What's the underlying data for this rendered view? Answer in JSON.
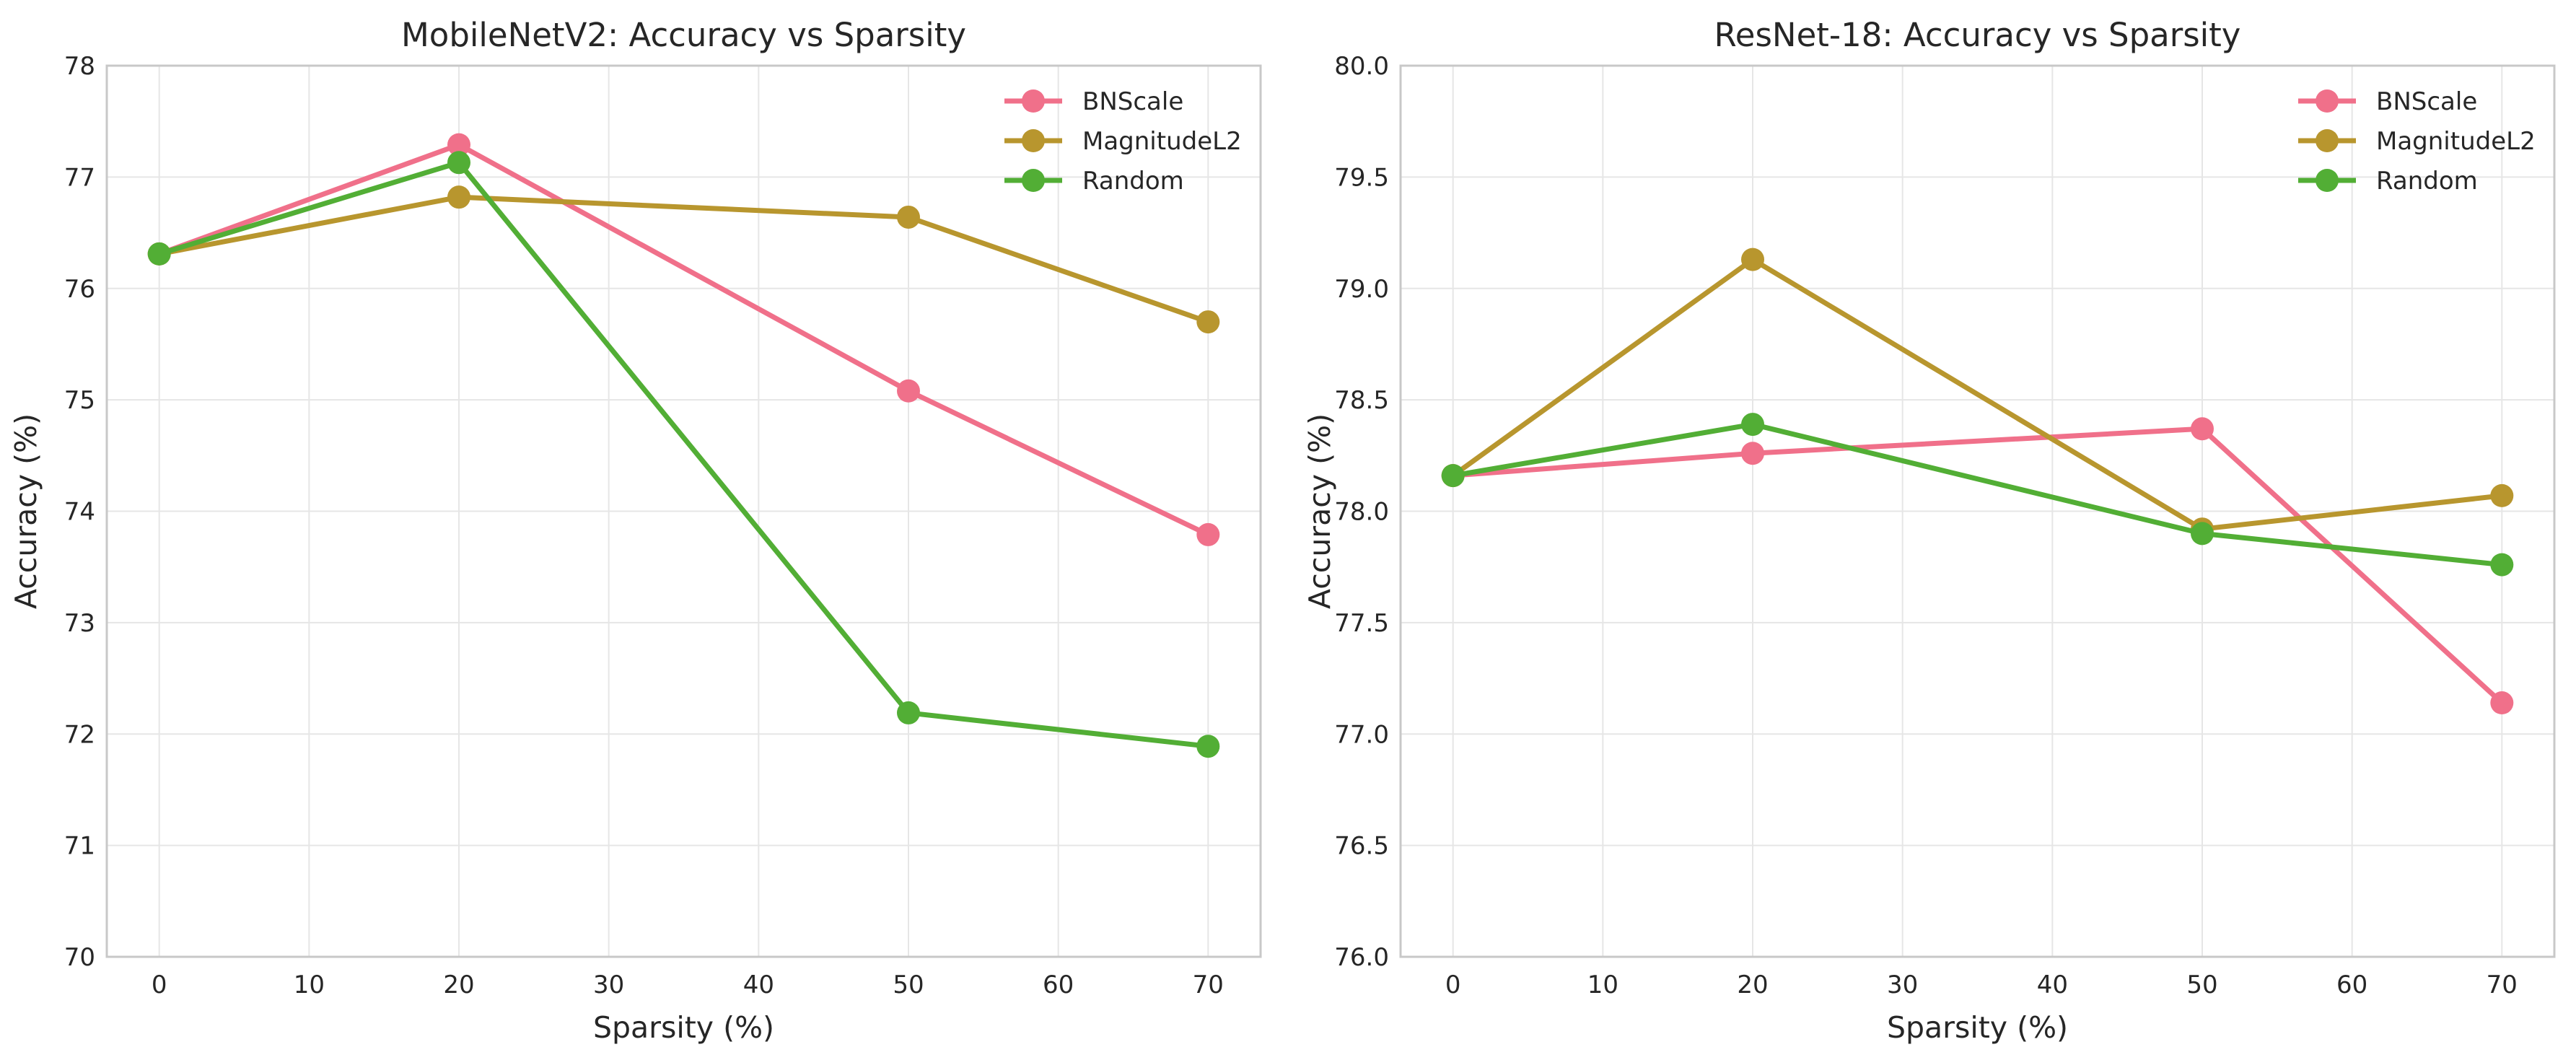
{
  "chart_data": [
    {
      "type": "line",
      "title": "MobileNetV2: Accuracy vs Sparsity",
      "xlabel": "Sparsity (%)",
      "ylabel": "Accuracy (%)",
      "x": [
        0,
        20,
        50,
        70
      ],
      "xlim": [
        -3.5,
        73.5
      ],
      "ylim": [
        70,
        78
      ],
      "xticks": [
        0,
        10,
        20,
        30,
        40,
        50,
        60,
        70
      ],
      "yticks": [
        70,
        71,
        72,
        73,
        74,
        75,
        76,
        77,
        78
      ],
      "ytick_labels": [
        "70",
        "71",
        "72",
        "73",
        "74",
        "75",
        "76",
        "77",
        "78"
      ],
      "grid": true,
      "legend_position": "top-right",
      "series": [
        {
          "name": "BNScale",
          "color": "#f0708a",
          "values": [
            76.31,
            77.29,
            75.08,
            73.79
          ]
        },
        {
          "name": "MagnitudeL2",
          "color": "#b8962e",
          "values": [
            76.31,
            76.82,
            76.64,
            75.7
          ]
        },
        {
          "name": "Random",
          "color": "#52ae35",
          "values": [
            76.31,
            77.13,
            72.19,
            71.89
          ]
        }
      ]
    },
    {
      "type": "line",
      "title": "ResNet-18: Accuracy vs Sparsity",
      "xlabel": "Sparsity (%)",
      "ylabel": "Accuracy (%)",
      "x": [
        0,
        20,
        50,
        70
      ],
      "xlim": [
        -3.5,
        73.5
      ],
      "ylim": [
        76.0,
        80.0
      ],
      "xticks": [
        0,
        10,
        20,
        30,
        40,
        50,
        60,
        70
      ],
      "yticks": [
        76.0,
        76.5,
        77.0,
        77.5,
        78.0,
        78.5,
        79.0,
        79.5,
        80.0
      ],
      "ytick_labels": [
        "76.0",
        "76.5",
        "77.0",
        "77.5",
        "78.0",
        "78.5",
        "79.0",
        "79.5",
        "80.0"
      ],
      "grid": true,
      "legend_position": "top-right",
      "series": [
        {
          "name": "BNScale",
          "color": "#f0708a",
          "values": [
            78.16,
            78.26,
            78.37,
            77.14
          ]
        },
        {
          "name": "MagnitudeL2",
          "color": "#b8962e",
          "values": [
            78.16,
            79.13,
            77.92,
            78.07
          ]
        },
        {
          "name": "Random",
          "color": "#52ae35",
          "values": [
            78.16,
            78.39,
            77.9,
            77.76
          ]
        }
      ]
    }
  ]
}
